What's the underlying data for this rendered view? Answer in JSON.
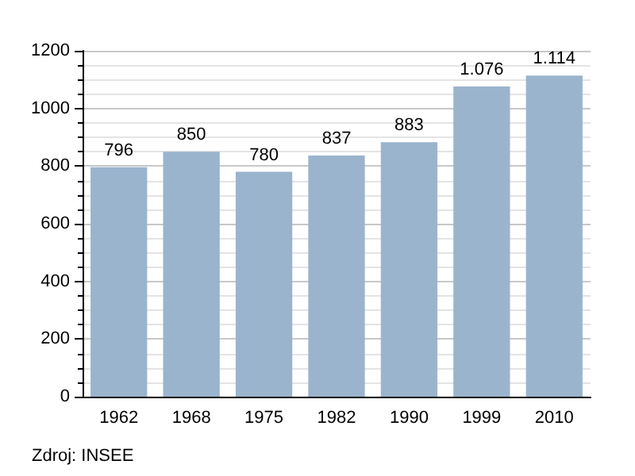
{
  "chart_data": {
    "type": "bar",
    "categories": [
      "1962",
      "1968",
      "1975",
      "1982",
      "1990",
      "1999",
      "2010"
    ],
    "values": [
      796,
      850,
      780,
      837,
      883,
      1076,
      1114
    ],
    "value_labels": [
      "796",
      "850",
      "780",
      "837",
      "883",
      "1.076",
      "1.114"
    ],
    "color": "#9bb4cd",
    "ylim": [
      0,
      1200
    ],
    "yticks": [
      0,
      200,
      400,
      600,
      800,
      1000,
      1200
    ],
    "grid": "y",
    "annotations": [
      "Zdroj: INSEE"
    ]
  }
}
